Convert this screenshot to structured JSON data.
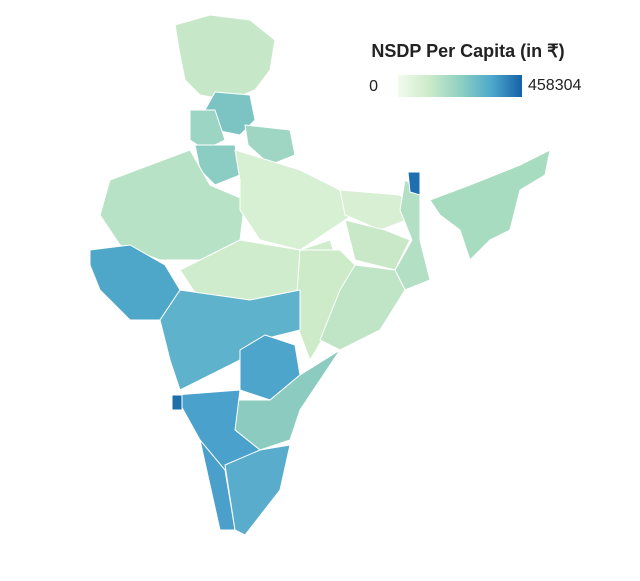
{
  "map": {
    "title": "NSDP Per Capita (in ₹)",
    "legend": {
      "min": 0,
      "max": 458304,
      "colors": [
        "#f2faee",
        "#cdebc9",
        "#8fd0c2",
        "#4fa9cc",
        "#1562a8"
      ]
    }
  }
}
